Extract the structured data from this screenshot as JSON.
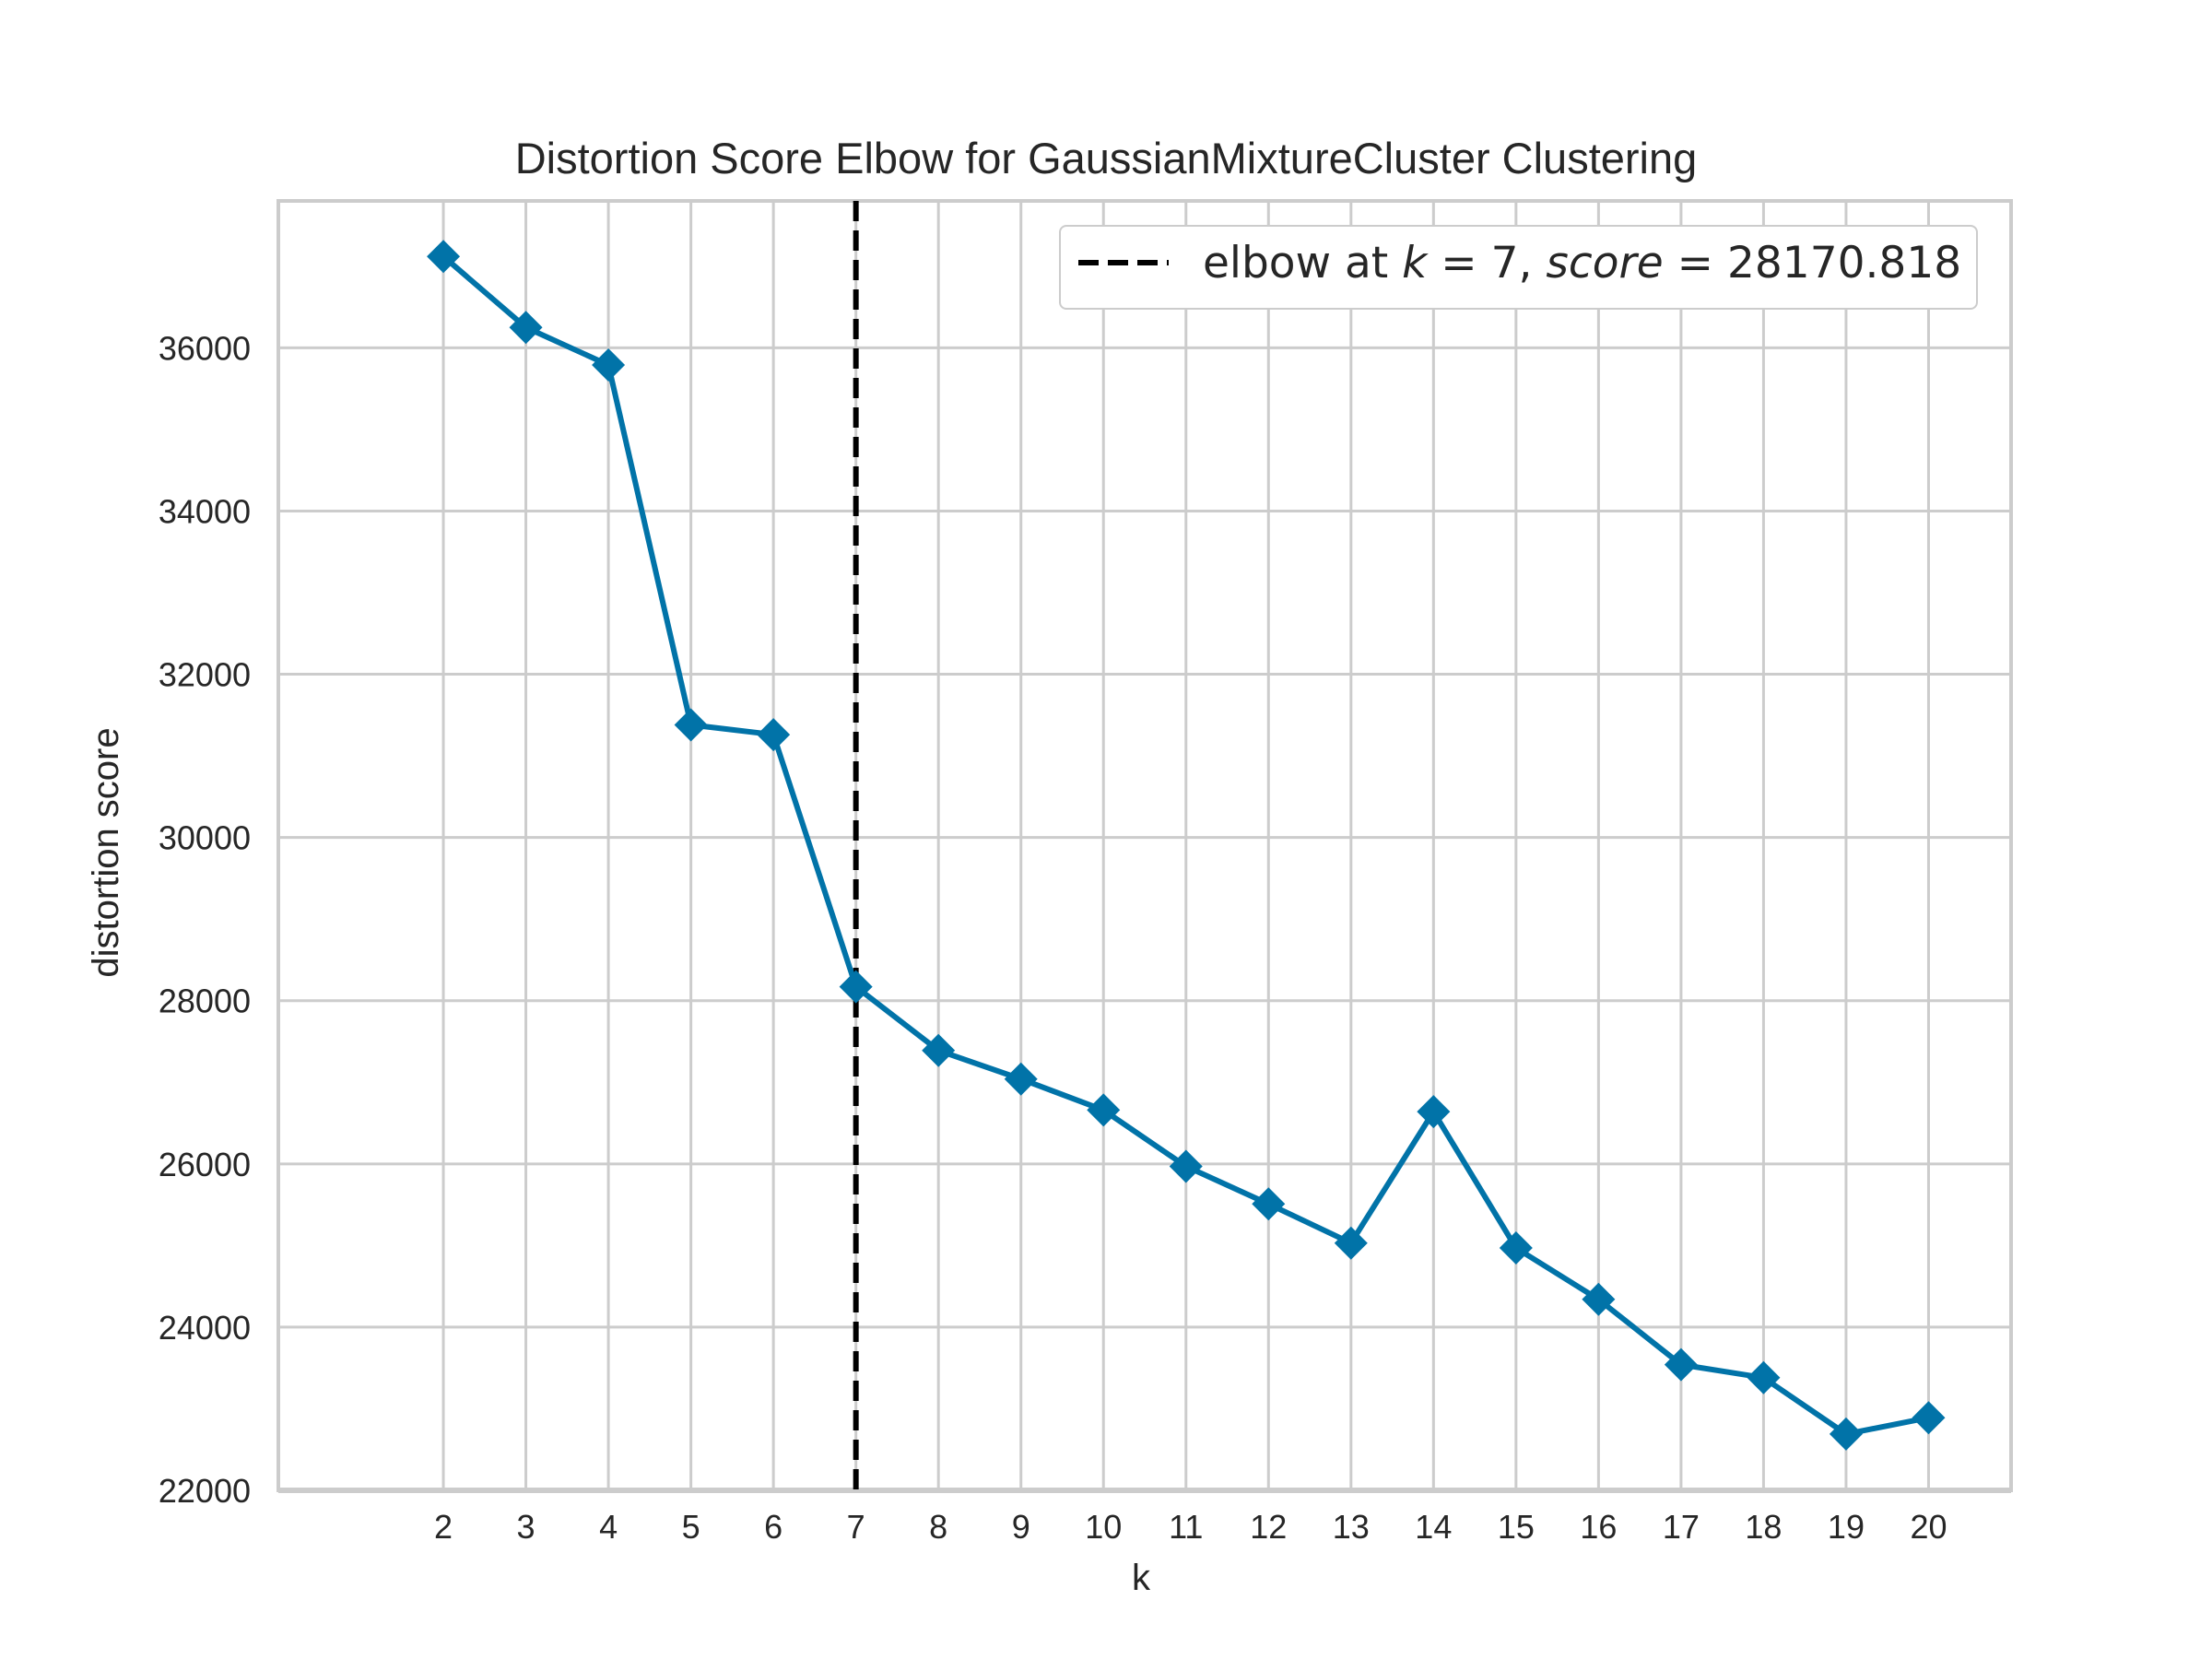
{
  "chart_data": {
    "type": "line",
    "title": "Distortion Score Elbow for GaussianMixtureCluster Clustering",
    "xlabel": "k",
    "ylabel": "distortion score",
    "x": [
      2,
      3,
      4,
      5,
      6,
      7,
      8,
      9,
      10,
      11,
      12,
      13,
      14,
      15,
      16,
      17,
      18,
      19,
      20
    ],
    "x_ticks": [
      "2",
      "3",
      "4",
      "5",
      "6",
      "7",
      "8",
      "9",
      "10",
      "11",
      "12",
      "13",
      "14",
      "15",
      "16",
      "17",
      "18",
      "19",
      "20"
    ],
    "series": [
      {
        "values": [
          37120,
          36250,
          35790,
          31380,
          31260,
          28171,
          27390,
          27040,
          26660,
          25970,
          25510,
          25030,
          26640,
          24970,
          24340,
          23540,
          23380,
          22690,
          22890
        ],
        "color": "#0173a8",
        "marker": "diamond"
      }
    ],
    "y_ticks": [
      "22000",
      "24000",
      "26000",
      "28000",
      "30000",
      "32000",
      "34000",
      "36000"
    ],
    "ylim": [
      22000,
      37800
    ],
    "xlim": [
      0,
      21
    ],
    "grid": true,
    "elbow": {
      "k": 7,
      "score": 28170.818,
      "legend_prefix": "elbow at ",
      "legend_k_symbol": "k",
      "legend_k_eq": " = 7, ",
      "legend_score_symbol": "score",
      "legend_score_eq": " = 28170.818",
      "line_style": "dashed",
      "line_color": "#000000"
    },
    "legend_placement": "top-right",
    "colors": {
      "grid": "#cccccc",
      "text": "#262626",
      "line": "#0173a8"
    }
  }
}
